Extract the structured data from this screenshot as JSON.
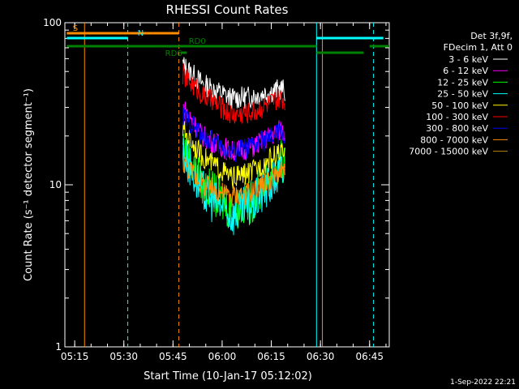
{
  "chart_data": {
    "type": "line",
    "title": "RHESSI Count Rates",
    "xlabel": "Start Time (10-Jan-17 05:12:02)",
    "ylabel": "Count Rate (s⁻¹ detector segment⁻¹)",
    "yscale": "log",
    "ylim": [
      1,
      100
    ],
    "y_ticks": [
      "1",
      "10",
      "100"
    ],
    "xlim": [
      "05:12",
      "06:51"
    ],
    "x_ticks": [
      "05:15",
      "05:30",
      "05:45",
      "06:00",
      "06:15",
      "06:30",
      "06:45"
    ],
    "legend_header": [
      "Det 3f,9f,",
      "FDecim 1, Att 0"
    ],
    "legend_position": "right",
    "grid": false,
    "timestamp": "1-Sep-2022 22:21",
    "series": [
      {
        "name": "3 - 6 keV",
        "color": "#ffffff",
        "values": [
          [
            5.8,
            55
          ],
          [
            5.9,
            42
          ],
          [
            6.05,
            34
          ],
          [
            6.15,
            35
          ],
          [
            6.3,
            39
          ],
          [
            6.32,
            38
          ]
        ]
      },
      {
        "name": "6 - 12 keV",
        "color": "#ff00ff",
        "values": [
          [
            5.8,
            30
          ],
          [
            5.9,
            20
          ],
          [
            6.05,
            16
          ],
          [
            6.15,
            17
          ],
          [
            6.3,
            22
          ],
          [
            6.32,
            21
          ]
        ]
      },
      {
        "name": "12 - 25 keV",
        "color": "#00ff00",
        "values": [
          [
            5.8,
            18
          ],
          [
            5.9,
            10
          ],
          [
            6.05,
            7
          ],
          [
            6.15,
            8
          ],
          [
            6.3,
            14
          ],
          [
            6.32,
            13
          ]
        ]
      },
      {
        "name": "25 - 50 keV",
        "color": "#00ffff",
        "values": [
          [
            5.8,
            16
          ],
          [
            5.9,
            9
          ],
          [
            6.05,
            6.5
          ],
          [
            6.15,
            7.5
          ],
          [
            6.3,
            12
          ],
          [
            6.32,
            11
          ]
        ]
      },
      {
        "name": "50 - 100 keV",
        "color": "#ffff00",
        "values": [
          [
            5.8,
            22
          ],
          [
            5.9,
            15
          ],
          [
            6.05,
            11
          ],
          [
            6.15,
            12
          ],
          [
            6.3,
            16
          ],
          [
            6.32,
            15
          ]
        ]
      },
      {
        "name": "100 - 300 keV",
        "color": "#ff0000",
        "values": [
          [
            5.8,
            48
          ],
          [
            5.9,
            36
          ],
          [
            6.05,
            27
          ],
          [
            6.15,
            28
          ],
          [
            6.3,
            34
          ],
          [
            6.32,
            33
          ]
        ]
      },
      {
        "name": "300 - 800 keV",
        "color": "#0000ff",
        "values": [
          [
            5.8,
            27
          ],
          [
            5.9,
            20
          ],
          [
            6.05,
            16
          ],
          [
            6.15,
            17
          ],
          [
            6.3,
            21
          ],
          [
            6.32,
            20
          ]
        ]
      },
      {
        "name": "800 - 7000 keV",
        "color": "#ff8c00",
        "values": [
          [
            5.8,
            14
          ],
          [
            5.9,
            10
          ],
          [
            6.05,
            8.5
          ],
          [
            6.15,
            9
          ],
          [
            6.3,
            12
          ],
          [
            6.32,
            11.5
          ]
        ]
      },
      {
        "name": "7000 - 15000 keV",
        "color": "#b8860b",
        "values": []
      }
    ],
    "flags": [
      {
        "label": "S",
        "color": "#ff8c00"
      },
      {
        "label": "N",
        "color": "#00ffff"
      },
      {
        "label": "RD0",
        "color": "#008000"
      },
      {
        "label": "RD6",
        "color": "#008000"
      }
    ]
  }
}
